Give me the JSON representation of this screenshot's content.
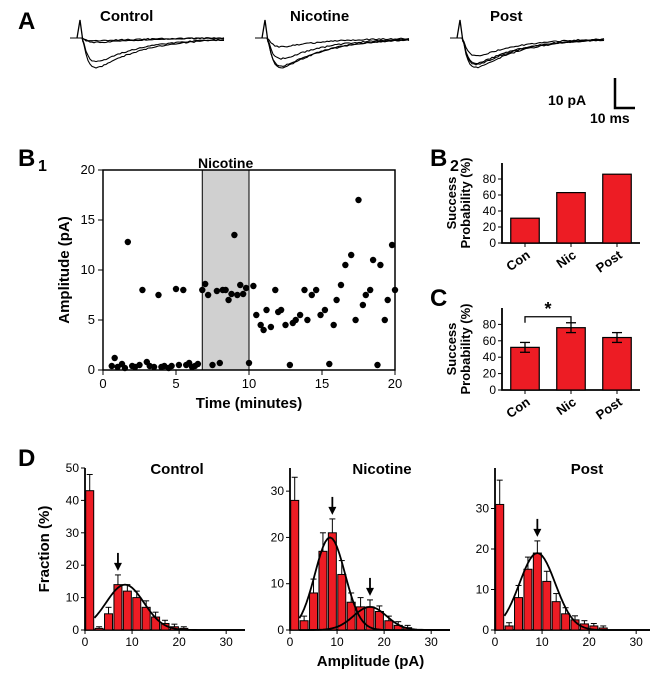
{
  "colors": {
    "bar_fill": "#ed1c24",
    "bar_stroke": "#000000",
    "scatter_fill": "#000000",
    "nicotine_box": "#d0d0d0",
    "axis": "#000000",
    "fit_curve": "#000000"
  },
  "panelA": {
    "label": "A",
    "titles": [
      "Control",
      "Nicotine",
      "Post"
    ],
    "scale_x_label": "10 ms",
    "scale_y_label": "10 pA"
  },
  "panelB1": {
    "label": "B",
    "sub": "1",
    "xlabel": "Time (minutes)",
    "ylabel": "Amplitude (pA)",
    "xlim": [
      0,
      20
    ],
    "xticks": [
      0,
      5,
      10,
      15,
      20
    ],
    "ylim": [
      0,
      20
    ],
    "yticks": [
      0,
      5,
      10,
      15,
      20
    ],
    "nicotine_band": [
      6.8,
      10.0
    ],
    "nicotine_label": "Nicotine",
    "points": [
      [
        0.6,
        0.4
      ],
      [
        0.8,
        1.2
      ],
      [
        1.0,
        0.3
      ],
      [
        1.3,
        0.6
      ],
      [
        1.5,
        0.2
      ],
      [
        1.7,
        12.8
      ],
      [
        2.0,
        0.4
      ],
      [
        2.2,
        0.3
      ],
      [
        2.5,
        0.5
      ],
      [
        2.7,
        8.0
      ],
      [
        3.0,
        0.8
      ],
      [
        3.2,
        0.4
      ],
      [
        3.5,
        0.3
      ],
      [
        3.8,
        7.5
      ],
      [
        4.0,
        0.3
      ],
      [
        4.2,
        0.4
      ],
      [
        4.5,
        0.2
      ],
      [
        4.7,
        0.4
      ],
      [
        5.0,
        8.1
      ],
      [
        5.2,
        0.5
      ],
      [
        5.5,
        8.0
      ],
      [
        5.7,
        0.5
      ],
      [
        5.9,
        0.7
      ],
      [
        6.1,
        0.3
      ],
      [
        6.3,
        0.4
      ],
      [
        6.5,
        0.6
      ],
      [
        6.8,
        8.0
      ],
      [
        7.0,
        8.6
      ],
      [
        7.2,
        7.5
      ],
      [
        7.5,
        0.5
      ],
      [
        7.8,
        7.9
      ],
      [
        8.0,
        0.7
      ],
      [
        8.2,
        8.0
      ],
      [
        8.4,
        8.0
      ],
      [
        8.6,
        7.0
      ],
      [
        8.8,
        7.6
      ],
      [
        9.0,
        13.5
      ],
      [
        9.2,
        7.5
      ],
      [
        9.4,
        8.5
      ],
      [
        9.6,
        7.6
      ],
      [
        9.8,
        8.2
      ],
      [
        10.0,
        0.7
      ],
      [
        10.3,
        8.4
      ],
      [
        10.5,
        5.5
      ],
      [
        10.8,
        4.5
      ],
      [
        11.0,
        4.0
      ],
      [
        11.2,
        6.0
      ],
      [
        11.5,
        4.3
      ],
      [
        11.8,
        8.0
      ],
      [
        12.0,
        5.8
      ],
      [
        12.2,
        6.0
      ],
      [
        12.5,
        4.5
      ],
      [
        12.8,
        0.5
      ],
      [
        13.0,
        4.7
      ],
      [
        13.2,
        5.0
      ],
      [
        13.5,
        5.5
      ],
      [
        13.8,
        8.0
      ],
      [
        14.0,
        5.0
      ],
      [
        14.3,
        7.5
      ],
      [
        14.6,
        8.0
      ],
      [
        14.9,
        5.5
      ],
      [
        15.2,
        6.0
      ],
      [
        15.5,
        0.6
      ],
      [
        15.8,
        4.5
      ],
      [
        16.0,
        7.0
      ],
      [
        16.3,
        8.5
      ],
      [
        16.6,
        10.5
      ],
      [
        17.0,
        11.5
      ],
      [
        17.3,
        5.0
      ],
      [
        17.5,
        17.0
      ],
      [
        17.8,
        6.5
      ],
      [
        18.0,
        7.5
      ],
      [
        18.3,
        8.0
      ],
      [
        18.5,
        11.0
      ],
      [
        18.8,
        0.5
      ],
      [
        19.0,
        10.5
      ],
      [
        19.3,
        5.0
      ],
      [
        19.5,
        7.0
      ],
      [
        19.8,
        12.5
      ],
      [
        20.0,
        8.0
      ]
    ]
  },
  "panelB2": {
    "sub": "2",
    "ylabel": "Success\nProbability (%)",
    "ylim": [
      0,
      100
    ],
    "yticks": [
      0,
      20,
      40,
      60,
      80
    ],
    "categories": [
      "Con",
      "Nic",
      "Post"
    ],
    "values": [
      31,
      63,
      86
    ]
  },
  "panelC": {
    "label": "C",
    "ylabel": "Success\nProbability (%)",
    "ylim": [
      0,
      100
    ],
    "yticks": [
      0,
      20,
      40,
      60,
      80
    ],
    "categories": [
      "Con",
      "Nic",
      "Post"
    ],
    "values": [
      52,
      76,
      64
    ],
    "errors": [
      6,
      6,
      6
    ],
    "sig_pair": [
      0,
      1
    ],
    "sig_label": "*"
  },
  "panelD": {
    "label": "D",
    "xlabel": "Amplitude (pA)",
    "ylabel": "Fraction (%)",
    "xlim": [
      0,
      34
    ],
    "xticks": [
      0,
      10,
      20,
      30
    ],
    "subplots": [
      {
        "title": "Control",
        "ylim": [
          0,
          50
        ],
        "yticks": [
          0,
          10,
          20,
          30,
          40,
          50
        ],
        "bin_centers": [
          1,
          3,
          5,
          7,
          9,
          11,
          13,
          15,
          17,
          19,
          21
        ],
        "values": [
          43,
          0.5,
          5,
          14,
          12,
          10,
          7,
          4,
          2,
          1,
          0.5
        ],
        "errors": [
          5,
          0.5,
          2,
          3,
          2,
          2,
          2,
          1.5,
          1,
          0.8,
          0.5
        ],
        "arrows": [
          7
        ],
        "gaussians": [
          {
            "amp": 14,
            "mu": 8.5,
            "sigma": 4
          }
        ]
      },
      {
        "title": "Nicotine",
        "ylim": [
          0,
          35
        ],
        "yticks": [
          0,
          10,
          20,
          30
        ],
        "bin_centers": [
          1,
          3,
          5,
          7,
          9,
          11,
          13,
          15,
          17,
          19,
          21,
          23,
          25
        ],
        "values": [
          28,
          2,
          8,
          17,
          21,
          12,
          6,
          5,
          5,
          4,
          2,
          1,
          0.5
        ],
        "errors": [
          5,
          1,
          3,
          4,
          3,
          3,
          2,
          2,
          1.5,
          1.2,
          1,
          0.8,
          0.5
        ],
        "arrows": [
          9,
          17
        ],
        "gaussians": [
          {
            "amp": 20,
            "mu": 8.5,
            "sigma": 3.2
          },
          {
            "amp": 5,
            "mu": 17,
            "sigma": 3.5
          }
        ]
      },
      {
        "title": "Post",
        "ylim": [
          0,
          40
        ],
        "yticks": [
          0,
          10,
          20,
          30
        ],
        "bin_centers": [
          1,
          3,
          5,
          7,
          9,
          11,
          13,
          15,
          17,
          19,
          21,
          23
        ],
        "values": [
          31,
          1,
          8,
          15,
          19,
          12,
          7,
          4,
          2.5,
          1.5,
          1,
          0.5
        ],
        "errors": [
          6,
          0.8,
          3,
          3,
          3,
          2.5,
          2,
          1.5,
          1,
          0.8,
          0.6,
          0.5
        ],
        "arrows": [
          9
        ],
        "gaussians": [
          {
            "amp": 19,
            "mu": 9,
            "sigma": 3.8
          }
        ]
      }
    ]
  }
}
